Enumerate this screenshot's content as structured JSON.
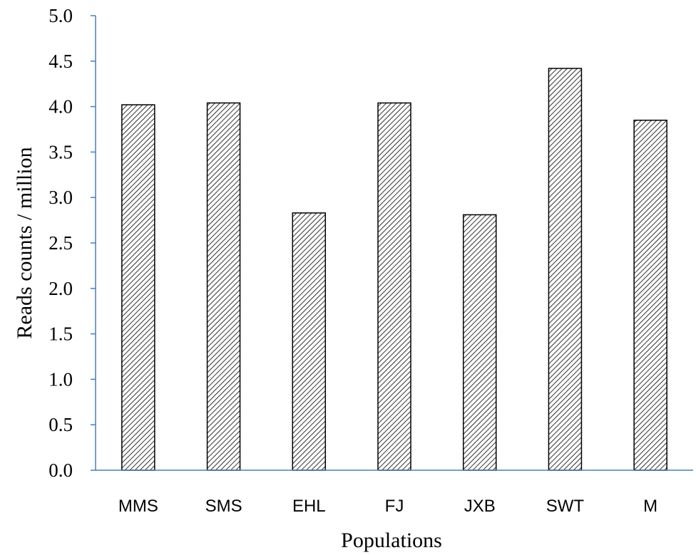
{
  "chart_data": {
    "type": "bar",
    "title": "",
    "xlabel": "Populations",
    "ylabel": "Reads counts / million",
    "categories": [
      "MMS",
      "SMS",
      "EHL",
      "FJ",
      "JXB",
      "SWT",
      "M"
    ],
    "values": [
      4.02,
      4.04,
      2.83,
      4.04,
      2.81,
      4.42,
      3.85
    ],
    "ylim": [
      0,
      5
    ],
    "yticks": [
      "0.0",
      "0.5",
      "1.0",
      "1.5",
      "2.0",
      "2.5",
      "3.0",
      "3.5",
      "4.0",
      "4.5",
      "5.0"
    ],
    "grid": false,
    "legend": "none",
    "bar_fill": "diagonal-hatch",
    "colors": {
      "axis": "#4a7ebb",
      "bar_stroke": "#000000",
      "hatch": "#000000",
      "background": "#ffffff"
    }
  }
}
